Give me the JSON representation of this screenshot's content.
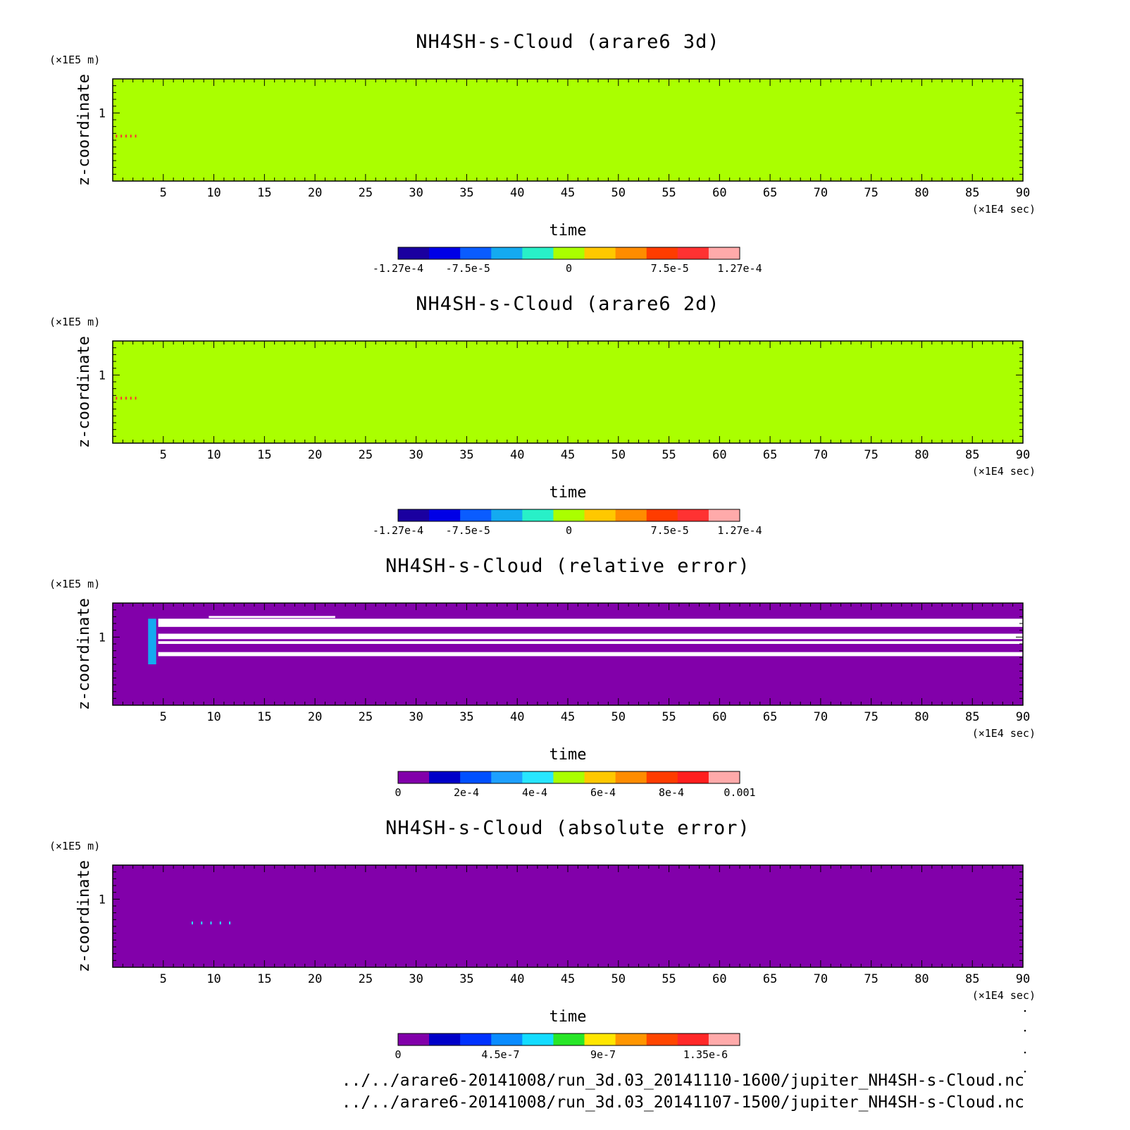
{
  "chart_data": [
    {
      "type": "heatmap",
      "title": "NH4SH-s-Cloud (arare6 3d)",
      "xlabel": "time",
      "ylabel": "z-coordinate",
      "x_unit": "(×1E4 sec)",
      "y_unit": "(×1E5 m)",
      "xlim": [
        0,
        90
      ],
      "ylim": [
        0,
        1.5
      ],
      "x_ticks": [
        "5",
        "10",
        "15",
        "20",
        "25",
        "30",
        "35",
        "40",
        "45",
        "50",
        "55",
        "60",
        "65",
        "70",
        "75",
        "80",
        "85",
        "90"
      ],
      "y_ticks": [
        "1"
      ],
      "field_color": "#aaff00",
      "colorbar": {
        "colors": [
          "#1a00a0",
          "#0000e6",
          "#0a5cff",
          "#14aaf0",
          "#28f0c8",
          "#aaff00",
          "#ffc800",
          "#ff8c00",
          "#ff3c00",
          "#ff3232",
          "#ffaaaa"
        ],
        "tick_labels": [
          "-1.27e-4",
          "-7.5e-5",
          "0",
          "7.5e-5",
          "1.27e-4"
        ],
        "min": -0.000127,
        "max": 0.000127
      },
      "features": [
        {
          "kind": "spot",
          "x": [
            0.3,
            2.2
          ],
          "z": 0.66,
          "color": "#ff3232"
        }
      ]
    },
    {
      "type": "heatmap",
      "title": "NH4SH-s-Cloud (arare6 2d)",
      "xlabel": "time",
      "ylabel": "z-coordinate",
      "x_unit": "(×1E4 sec)",
      "y_unit": "(×1E5 m)",
      "xlim": [
        0,
        90
      ],
      "ylim": [
        0,
        1.5
      ],
      "x_ticks": [
        "5",
        "10",
        "15",
        "20",
        "25",
        "30",
        "35",
        "40",
        "45",
        "50",
        "55",
        "60",
        "65",
        "70",
        "75",
        "80",
        "85",
        "90"
      ],
      "y_ticks": [
        "1"
      ],
      "field_color": "#aaff00",
      "colorbar": {
        "colors": [
          "#1a00a0",
          "#0000e6",
          "#0a5cff",
          "#14aaf0",
          "#28f0c8",
          "#aaff00",
          "#ffc800",
          "#ff8c00",
          "#ff3c00",
          "#ff3232",
          "#ffaaaa"
        ],
        "tick_labels": [
          "-1.27e-4",
          "-7.5e-5",
          "0",
          "7.5e-5",
          "1.27e-4"
        ],
        "min": -0.000127,
        "max": 0.000127
      },
      "features": [
        {
          "kind": "spot",
          "x": [
            0.3,
            2.2
          ],
          "z": 0.66,
          "color": "#ff3232"
        }
      ]
    },
    {
      "type": "heatmap",
      "title": "NH4SH-s-Cloud (relative error)",
      "xlabel": "time",
      "ylabel": "z-coordinate",
      "x_unit": "(×1E4 sec)",
      "y_unit": "(×1E5 m)",
      "xlim": [
        0,
        90
      ],
      "ylim": [
        0,
        1.5
      ],
      "x_ticks": [
        "5",
        "10",
        "15",
        "20",
        "25",
        "30",
        "35",
        "40",
        "45",
        "50",
        "55",
        "60",
        "65",
        "70",
        "75",
        "80",
        "85",
        "90"
      ],
      "y_ticks": [
        "1"
      ],
      "field_color": "#8200aa",
      "colorbar": {
        "colors": [
          "#8200aa",
          "#0000c8",
          "#0050ff",
          "#1ea0ff",
          "#28e6ff",
          "#aaff00",
          "#ffc800",
          "#ff8c00",
          "#ff3c00",
          "#ff1e1e",
          "#ffaaaa"
        ],
        "tick_labels": [
          "0",
          "2e-4",
          "4e-4",
          "6e-4",
          "8e-4",
          "0.001"
        ],
        "min": 0,
        "max": 0.001
      },
      "features": [
        {
          "kind": "band",
          "x": [
            9.5,
            22
          ],
          "z": [
            1.28,
            1.31
          ],
          "color": "#ffffff"
        },
        {
          "kind": "band",
          "x": [
            4.5,
            90
          ],
          "z": [
            1.15,
            1.27
          ],
          "color": "#ffffff"
        },
        {
          "kind": "band",
          "x": [
            4.5,
            90
          ],
          "z": [
            0.97,
            1.05
          ],
          "color": "#ffffff"
        },
        {
          "kind": "band",
          "x": [
            4.5,
            90
          ],
          "z": [
            0.9,
            0.94
          ],
          "color": "#ffffff"
        },
        {
          "kind": "band",
          "x": [
            4.5,
            90
          ],
          "z": [
            0.72,
            0.78
          ],
          "color": "#ffffff"
        },
        {
          "kind": "band",
          "x": [
            3.5,
            4.3
          ],
          "z": [
            0.6,
            1.27
          ],
          "color": "#14aaf0"
        }
      ]
    },
    {
      "type": "heatmap",
      "title": "NH4SH-s-Cloud (absolute error)",
      "xlabel": "time",
      "ylabel": "z-coordinate",
      "x_unit": "(×1E4 sec)",
      "y_unit": "(×1E5 m)",
      "xlim": [
        0,
        90
      ],
      "ylim": [
        0,
        1.5
      ],
      "x_ticks": [
        "5",
        "10",
        "15",
        "20",
        "25",
        "30",
        "35",
        "40",
        "45",
        "50",
        "55",
        "60",
        "65",
        "70",
        "75",
        "80",
        "85",
        "90"
      ],
      "y_ticks": [
        "1"
      ],
      "field_color": "#8200aa",
      "colorbar": {
        "colors": [
          "#8200aa",
          "#0000c8",
          "#0032ff",
          "#0a8cff",
          "#14dcff",
          "#28e628",
          "#ffe600",
          "#ff9600",
          "#ff4600",
          "#ff2828",
          "#ffaaaa"
        ],
        "tick_labels": [
          "0",
          "4.5e-7",
          "9e-7",
          "1.35e-6"
        ],
        "min": 0,
        "max": 1.5e-06
      },
      "features": [
        {
          "kind": "spot",
          "x": [
            7.8,
            11.5
          ],
          "z": 0.65,
          "color": "#28e6ff"
        }
      ]
    }
  ],
  "footer": {
    "file_1": "../../arare6-20141008/run_3d.03_20141110-1600/jupiter_NH4SH-s-Cloud.nc",
    "file_2": "../../arare6-20141008/run_3d.03_20141107-1500/jupiter_NH4SH-s-Cloud.nc"
  }
}
